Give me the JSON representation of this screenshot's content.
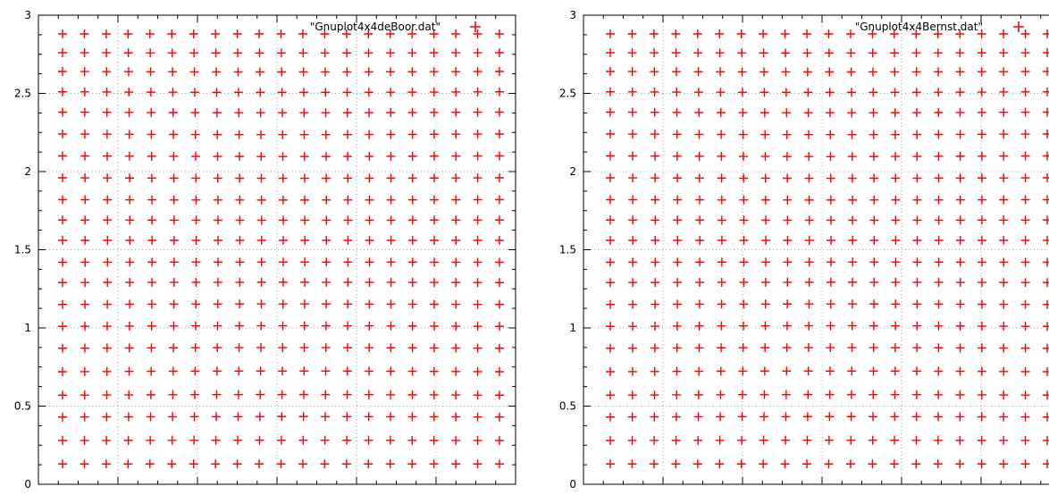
{
  "colors": {
    "points": "#ff0000",
    "axes": "#000000",
    "grid": "#a0a0a0",
    "background": "#ffffff"
  },
  "chart_data": [
    {
      "type": "scatter",
      "point_style": "plus",
      "grid": true,
      "legend_position": "top-right",
      "ylim": [
        0,
        3
      ],
      "yticks": [
        "0",
        "0.5",
        "1",
        "1.5",
        "2",
        "2.5",
        "3"
      ],
      "series": [
        {
          "name": "\"Gnuplot4x4deBoor.dat\"",
          "y_rows": [
            0.13,
            0.28,
            0.43,
            0.57,
            0.72,
            0.87,
            1.01,
            1.15,
            1.29,
            1.42,
            1.56,
            1.69,
            1.82,
            1.96,
            2.1,
            2.24,
            2.38,
            2.51,
            2.64,
            2.76,
            2.88
          ],
          "columns_per_row": 21
        }
      ]
    },
    {
      "type": "scatter",
      "point_style": "plus",
      "grid": true,
      "legend_position": "top-right",
      "ylim": [
        0,
        3
      ],
      "yticks": [
        "0",
        "0.5",
        "1",
        "1.5",
        "2",
        "2.5",
        "3"
      ],
      "series": [
        {
          "name": "\"Gnuplot4x4Bernst.dat\"",
          "y_rows": [
            0.13,
            0.28,
            0.43,
            0.57,
            0.72,
            0.87,
            1.01,
            1.15,
            1.29,
            1.42,
            1.56,
            1.69,
            1.82,
            1.96,
            2.1,
            2.24,
            2.38,
            2.51,
            2.64,
            2.76,
            2.88
          ],
          "columns_per_row": 21
        }
      ]
    }
  ]
}
